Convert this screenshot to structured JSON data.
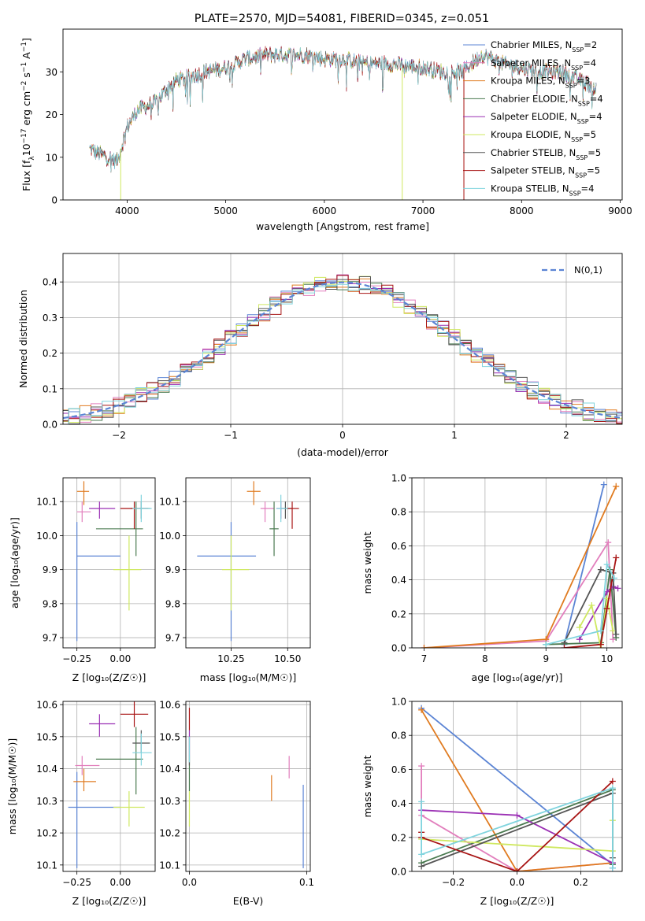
{
  "title": "PLATE=2570, MJD=54081, FIBERID=0345, z=0.051",
  "models": [
    {
      "name": "Chabrier MILES",
      "nssp": "2",
      "color": "#5b84d4"
    },
    {
      "name": "Salpeter MILES",
      "nssp": "4",
      "color": "#e27fbd"
    },
    {
      "name": "Kroupa MILES",
      "nssp": "3",
      "color": "#e07b20"
    },
    {
      "name": "Chabrier ELODIE",
      "nssp": "4",
      "color": "#4a7a50"
    },
    {
      "name": "Salpeter ELODIE",
      "nssp": "4",
      "color": "#9b30b4"
    },
    {
      "name": "Kroupa ELODIE",
      "nssp": "5",
      "color": "#cfe860"
    },
    {
      "name": "Chabrier STELIB",
      "nssp": "5",
      "color": "#555555"
    },
    {
      "name": "Salpeter STELIB",
      "nssp": "5",
      "color": "#a81414"
    },
    {
      "name": "Kroupa STELIB",
      "nssp": "4",
      "color": "#80d4de"
    }
  ],
  "chart_data": [
    {
      "type": "line",
      "xlabel": "wavelength [Angstrom, rest frame]",
      "ylabel": "Flux [f_λ10^-17 erg cm^-2 s^-1 A^-1]",
      "xlim": [
        3350,
        9020
      ],
      "ylim": [
        0,
        40
      ],
      "xticks": [
        4000,
        5000,
        6000,
        7000,
        8000,
        9000
      ],
      "yticks": [
        0,
        10,
        20,
        30
      ],
      "spectrum_anchors": [
        [
          3620,
          12
        ],
        [
          3700,
          11
        ],
        [
          3800,
          10
        ],
        [
          3900,
          9
        ],
        [
          3950,
          13
        ],
        [
          4000,
          17
        ],
        [
          4100,
          21
        ],
        [
          4200,
          22
        ],
        [
          4300,
          23
        ],
        [
          4400,
          26
        ],
        [
          4500,
          28
        ],
        [
          4600,
          28.5
        ],
        [
          4800,
          30
        ],
        [
          5000,
          31
        ],
        [
          5200,
          33
        ],
        [
          5400,
          34
        ],
        [
          5600,
          34
        ],
        [
          5800,
          34
        ],
        [
          6000,
          33
        ],
        [
          6200,
          33
        ],
        [
          6400,
          32
        ],
        [
          6600,
          32
        ],
        [
          6800,
          31.5
        ],
        [
          7000,
          31
        ],
        [
          7200,
          30
        ],
        [
          7400,
          30
        ],
        [
          7600,
          34
        ],
        [
          7800,
          32
        ],
        [
          8000,
          31
        ],
        [
          8200,
          30
        ],
        [
          8400,
          30
        ],
        [
          8600,
          28
        ],
        [
          8760,
          26
        ]
      ],
      "grid": false
    },
    {
      "type": "bar",
      "xlabel": "(data-model)/error",
      "ylabel": "Normed distribution",
      "xlim": [
        -2.5,
        2.5
      ],
      "ylim": [
        0,
        0.48
      ],
      "xticks": [
        -2,
        -1,
        0,
        1,
        2
      ],
      "yticks": [
        0.0,
        0.1,
        0.2,
        0.3,
        0.4
      ],
      "bin_width": 0.1,
      "legend": "N(0,1)",
      "grid": true
    },
    {
      "type": "scatter",
      "xlabel": "Z [log10(Z/Z_sun)]",
      "ylabel": "age [log10(age/yr)]",
      "xlim": [
        -0.33,
        0.2
      ],
      "ylim": [
        9.67,
        10.17
      ],
      "xticks": [
        -0.25,
        0.0
      ],
      "yticks": [
        9.7,
        9.8,
        9.9,
        10.0,
        10.1
      ],
      "points": [
        [
          -0.25,
          9.94,
          -0.25,
          0.0,
          9.69,
          10.04
        ],
        [
          -0.22,
          10.07,
          -0.25,
          -0.17,
          10.04,
          10.1
        ],
        [
          -0.21,
          10.13,
          -0.25,
          -0.18,
          10.09,
          10.16
        ],
        [
          0.09,
          10.02,
          -0.14,
          0.13,
          9.94,
          10.1
        ],
        [
          -0.12,
          10.08,
          -0.18,
          -0.03,
          10.05,
          10.1
        ],
        [
          0.05,
          9.9,
          -0.04,
          0.12,
          9.78,
          10.0
        ],
        [
          0.12,
          10.08,
          0.06,
          0.17,
          10.05,
          10.1
        ],
        [
          0.08,
          10.08,
          0.0,
          0.16,
          10.02,
          10.1
        ],
        [
          0.12,
          10.08,
          0.07,
          0.18,
          10.04,
          10.12
        ]
      ],
      "grid": true
    },
    {
      "type": "scatter",
      "xlabel": "mass [log10(M/M_sun)]",
      "ylabel": "",
      "xlim": [
        10.05,
        10.6
      ],
      "ylim": [
        9.67,
        10.17
      ],
      "xticks": [
        10.25,
        10.5
      ],
      "yticks": [
        9.7,
        9.8,
        9.9,
        10.0,
        10.1
      ],
      "points": [
        [
          10.25,
          9.94,
          10.1,
          10.36,
          9.69,
          10.04
        ],
        [
          10.4,
          10.08,
          10.38,
          10.44,
          10.04,
          10.1
        ],
        [
          10.35,
          10.13,
          10.32,
          10.38,
          10.09,
          10.16
        ],
        [
          10.44,
          10.02,
          10.42,
          10.46,
          9.94,
          10.1
        ],
        [
          10.47,
          10.08,
          10.45,
          10.49,
          10.05,
          10.1
        ],
        [
          10.25,
          9.9,
          10.21,
          10.33,
          9.78,
          10.0
        ],
        [
          10.49,
          10.08,
          10.47,
          10.52,
          10.05,
          10.1
        ],
        [
          10.52,
          10.08,
          10.5,
          10.55,
          10.02,
          10.1
        ],
        [
          10.47,
          10.08,
          10.45,
          10.5,
          10.04,
          10.12
        ]
      ],
      "grid": true
    },
    {
      "type": "line",
      "xlabel": "age [log10(age/yr)]",
      "ylabel": "mass weight",
      "xlim": [
        6.8,
        10.25
      ],
      "ylim": [
        0,
        1.0
      ],
      "xticks": [
        7,
        8,
        9,
        10
      ],
      "yticks": [
        0.0,
        0.2,
        0.4,
        0.6,
        0.8,
        1.0
      ],
      "series": [
        {
          "x": [
            9.3,
            9.95
          ],
          "y": [
            0.02,
            0.96
          ]
        },
        {
          "x": [
            7.0,
            9.0,
            10.02,
            10.1
          ],
          "y": [
            0.0,
            0.04,
            0.62,
            0.05
          ]
        },
        {
          "x": [
            7.0,
            9.0,
            10.15
          ],
          "y": [
            0.0,
            0.05,
            0.95
          ]
        },
        {
          "x": [
            9.0,
            9.9,
            10.05,
            10.15
          ],
          "y": [
            0.02,
            0.03,
            0.46,
            0.06
          ]
        },
        {
          "x": [
            9.55,
            10.0,
            10.1,
            10.18
          ],
          "y": [
            0.05,
            0.33,
            0.36,
            0.35
          ]
        },
        {
          "x": [
            9.55,
            9.75,
            9.9,
            10.0,
            10.1
          ],
          "y": [
            0.12,
            0.25,
            0.0,
            0.29,
            0.1
          ]
        },
        {
          "x": [
            9.3,
            9.9,
            10.1,
            10.15
          ],
          "y": [
            0.03,
            0.46,
            0.44,
            0.08
          ]
        },
        {
          "x": [
            9.3,
            9.9,
            10.0,
            10.15
          ],
          "y": [
            0.0,
            0.02,
            0.23,
            0.53
          ]
        },
        {
          "x": [
            9.0,
            9.9,
            10.0,
            10.12
          ],
          "y": [
            0.02,
            0.1,
            0.49,
            0.41
          ]
        }
      ],
      "grid": true
    },
    {
      "type": "scatter",
      "xlabel": "Z [log10(Z/Z_sun)]",
      "ylabel": "mass [log10(M/M_sun)]",
      "xlim": [
        -0.33,
        0.2
      ],
      "ylim": [
        10.08,
        10.61
      ],
      "xticks": [
        -0.25,
        0.0
      ],
      "yticks": [
        10.1,
        10.2,
        10.3,
        10.4,
        10.5,
        10.6
      ],
      "points": [
        [
          -0.25,
          10.28,
          -0.3,
          0.0,
          10.09,
          10.39
        ],
        [
          -0.22,
          10.41,
          -0.26,
          -0.12,
          10.38,
          10.44
        ],
        [
          -0.21,
          10.36,
          -0.27,
          -0.14,
          10.33,
          10.4
        ],
        [
          0.09,
          10.43,
          -0.14,
          0.13,
          10.32,
          10.53
        ],
        [
          -0.12,
          10.54,
          -0.18,
          -0.03,
          10.5,
          10.57
        ],
        [
          0.05,
          10.28,
          -0.04,
          0.14,
          10.22,
          10.33
        ],
        [
          0.12,
          10.48,
          0.07,
          0.17,
          10.45,
          10.52
        ],
        [
          0.08,
          10.57,
          0.0,
          0.16,
          10.53,
          10.61
        ],
        [
          0.12,
          10.45,
          0.07,
          0.18,
          10.41,
          10.51
        ]
      ],
      "grid": true
    },
    {
      "type": "scatter",
      "xlabel": "E(B-V)",
      "ylabel": "",
      "xlim": [
        -0.003,
        0.103
      ],
      "ylim": [
        10.08,
        10.61
      ],
      "xticks": [
        0.0,
        0.1
      ],
      "yticks": [
        10.1,
        10.2,
        10.3,
        10.4,
        10.5,
        10.6
      ],
      "points": [
        [
          0.097,
          10.22,
          0.097,
          0.097,
          10.09,
          10.35
        ],
        [
          0.085,
          10.41,
          0.085,
          0.085,
          10.37,
          10.44
        ],
        [
          0.07,
          10.34,
          0.07,
          0.07,
          10.3,
          10.38
        ],
        [
          0.0,
          10.39,
          0.0,
          0.0,
          10.33,
          10.44
        ],
        [
          0.0,
          10.48,
          0.0,
          0.0,
          10.44,
          10.52
        ],
        [
          0.0,
          10.28,
          0.0,
          0.0,
          10.22,
          10.33
        ],
        [
          0.0,
          10.45,
          0.0,
          0.0,
          10.41,
          10.5
        ],
        [
          0.0,
          10.55,
          0.0,
          0.0,
          10.52,
          10.59
        ],
        [
          0.0,
          10.46,
          0.0,
          0.0,
          10.42,
          10.5
        ]
      ],
      "grid": true
    },
    {
      "type": "line",
      "xlabel": "Z [log10(Z/Z_sun)]",
      "ylabel": "mass weight",
      "xlim": [
        -0.33,
        0.33
      ],
      "ylim": [
        0,
        1.0
      ],
      "xticks": [
        -0.2,
        0.0,
        0.2
      ],
      "yticks": [
        0.0,
        0.2,
        0.4,
        0.6,
        0.8,
        1.0
      ],
      "series": [
        {
          "x": [
            -0.3,
            0.3,
            0.3
          ],
          "y": [
            0.96,
            0.04,
            0.02
          ]
        },
        {
          "x": [
            -0.3,
            -0.3,
            0.0,
            0.3
          ],
          "y": [
            0.62,
            0.33,
            0.0,
            0.05
          ]
        },
        {
          "x": [
            -0.3,
            0.0,
            0.3
          ],
          "y": [
            0.95,
            0.0,
            0.05
          ]
        },
        {
          "x": [
            -0.3,
            0.3,
            0.3
          ],
          "y": [
            0.05,
            0.48,
            0.04
          ]
        },
        {
          "x": [
            -0.3,
            0.0,
            0.3
          ],
          "y": [
            0.36,
            0.33,
            0.05
          ]
        },
        {
          "x": [
            -0.3,
            0.3,
            0.3
          ],
          "y": [
            0.19,
            0.12,
            0.3
          ]
        },
        {
          "x": [
            -0.3,
            0.3,
            0.3
          ],
          "y": [
            0.03,
            0.46,
            0.08
          ]
        },
        {
          "x": [
            -0.3,
            -0.3,
            0.0,
            0.3
          ],
          "y": [
            0.23,
            0.2,
            0.0,
            0.53
          ]
        },
        {
          "x": [
            -0.3,
            -0.3,
            0.3,
            0.3
          ],
          "y": [
            0.41,
            0.1,
            0.49,
            0.02
          ]
        }
      ],
      "grid": true
    }
  ]
}
